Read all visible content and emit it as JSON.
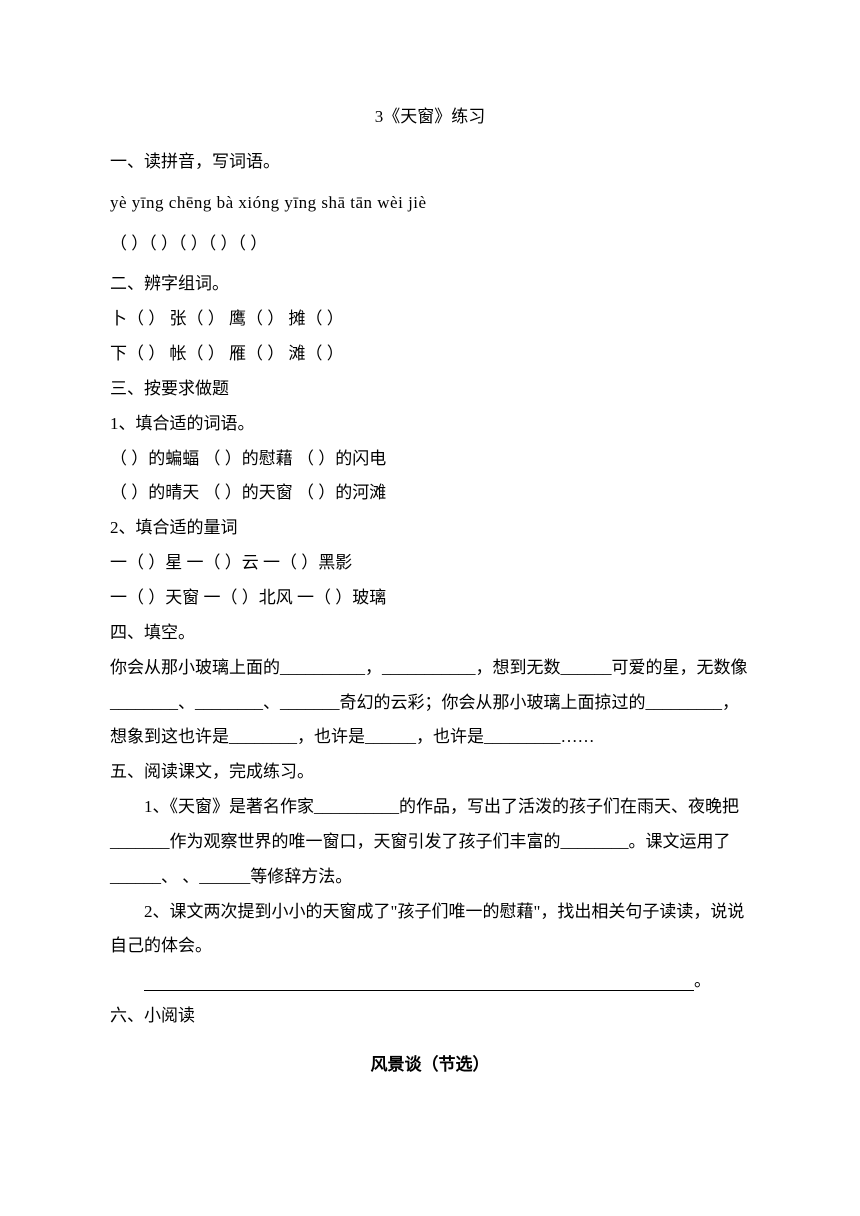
{
  "title": "3《天窗》练习",
  "section1": {
    "heading": "一、读拼音，写词语。",
    "pinyin": "yè yīng   chēng bà   xióng yīng    shā tān   wèi jiè",
    "parens": "（          ）（          ）（             ）（          ）（          ）"
  },
  "section2": {
    "heading": "二、辨字组词。",
    "row1": "卜（         ）      张（         ）      鹰（         ）   摊（         ）",
    "row2": "下（         ）      帐（         ）      雁（         ）   滩（         ）"
  },
  "section3": {
    "heading": "三、按要求做题",
    "sub1": "1、填合适的词语。",
    "row1": "（        ）的蝙蝠        （        ）的慰藉      （        ）的闪电",
    "row2": "（        ）的晴天        （        ）的天窗      （        ）的河滩",
    "sub2": "2、填合适的量词",
    "row3": "一（        ）星      一（        ）云      一（        ）黑影",
    "row4": "一（        ）天窗    一（        ）北风    一（        ）玻璃"
  },
  "section4": {
    "heading": "四、填空。",
    "text": "你会从那小玻璃上面的__________，___________，想到无数______可爱的星，无数像________、________、_______奇幻的云彩；你会从那小玻璃上面掠过的_________，想象到这也许是________，也许是______，也许是_________……"
  },
  "section5": {
    "heading": "五、阅读课文，完成练习。",
    "q1": "1、《天窗》是著名作家__________的作品，写出了活泼的孩子们在雨天、夜晚把_______作为观察世界的唯一窗口，天窗引发了孩子们丰富的________。课文运用了______、        、______等修辞方法。",
    "q2": "2、课文两次提到小小的天窗成了\"孩子们唯一的慰藉\"，找出相关句子读读，说说自己的体会。"
  },
  "section6": {
    "heading": "六、小阅读",
    "subtitle": "风景谈（节选）"
  },
  "period": "。"
}
